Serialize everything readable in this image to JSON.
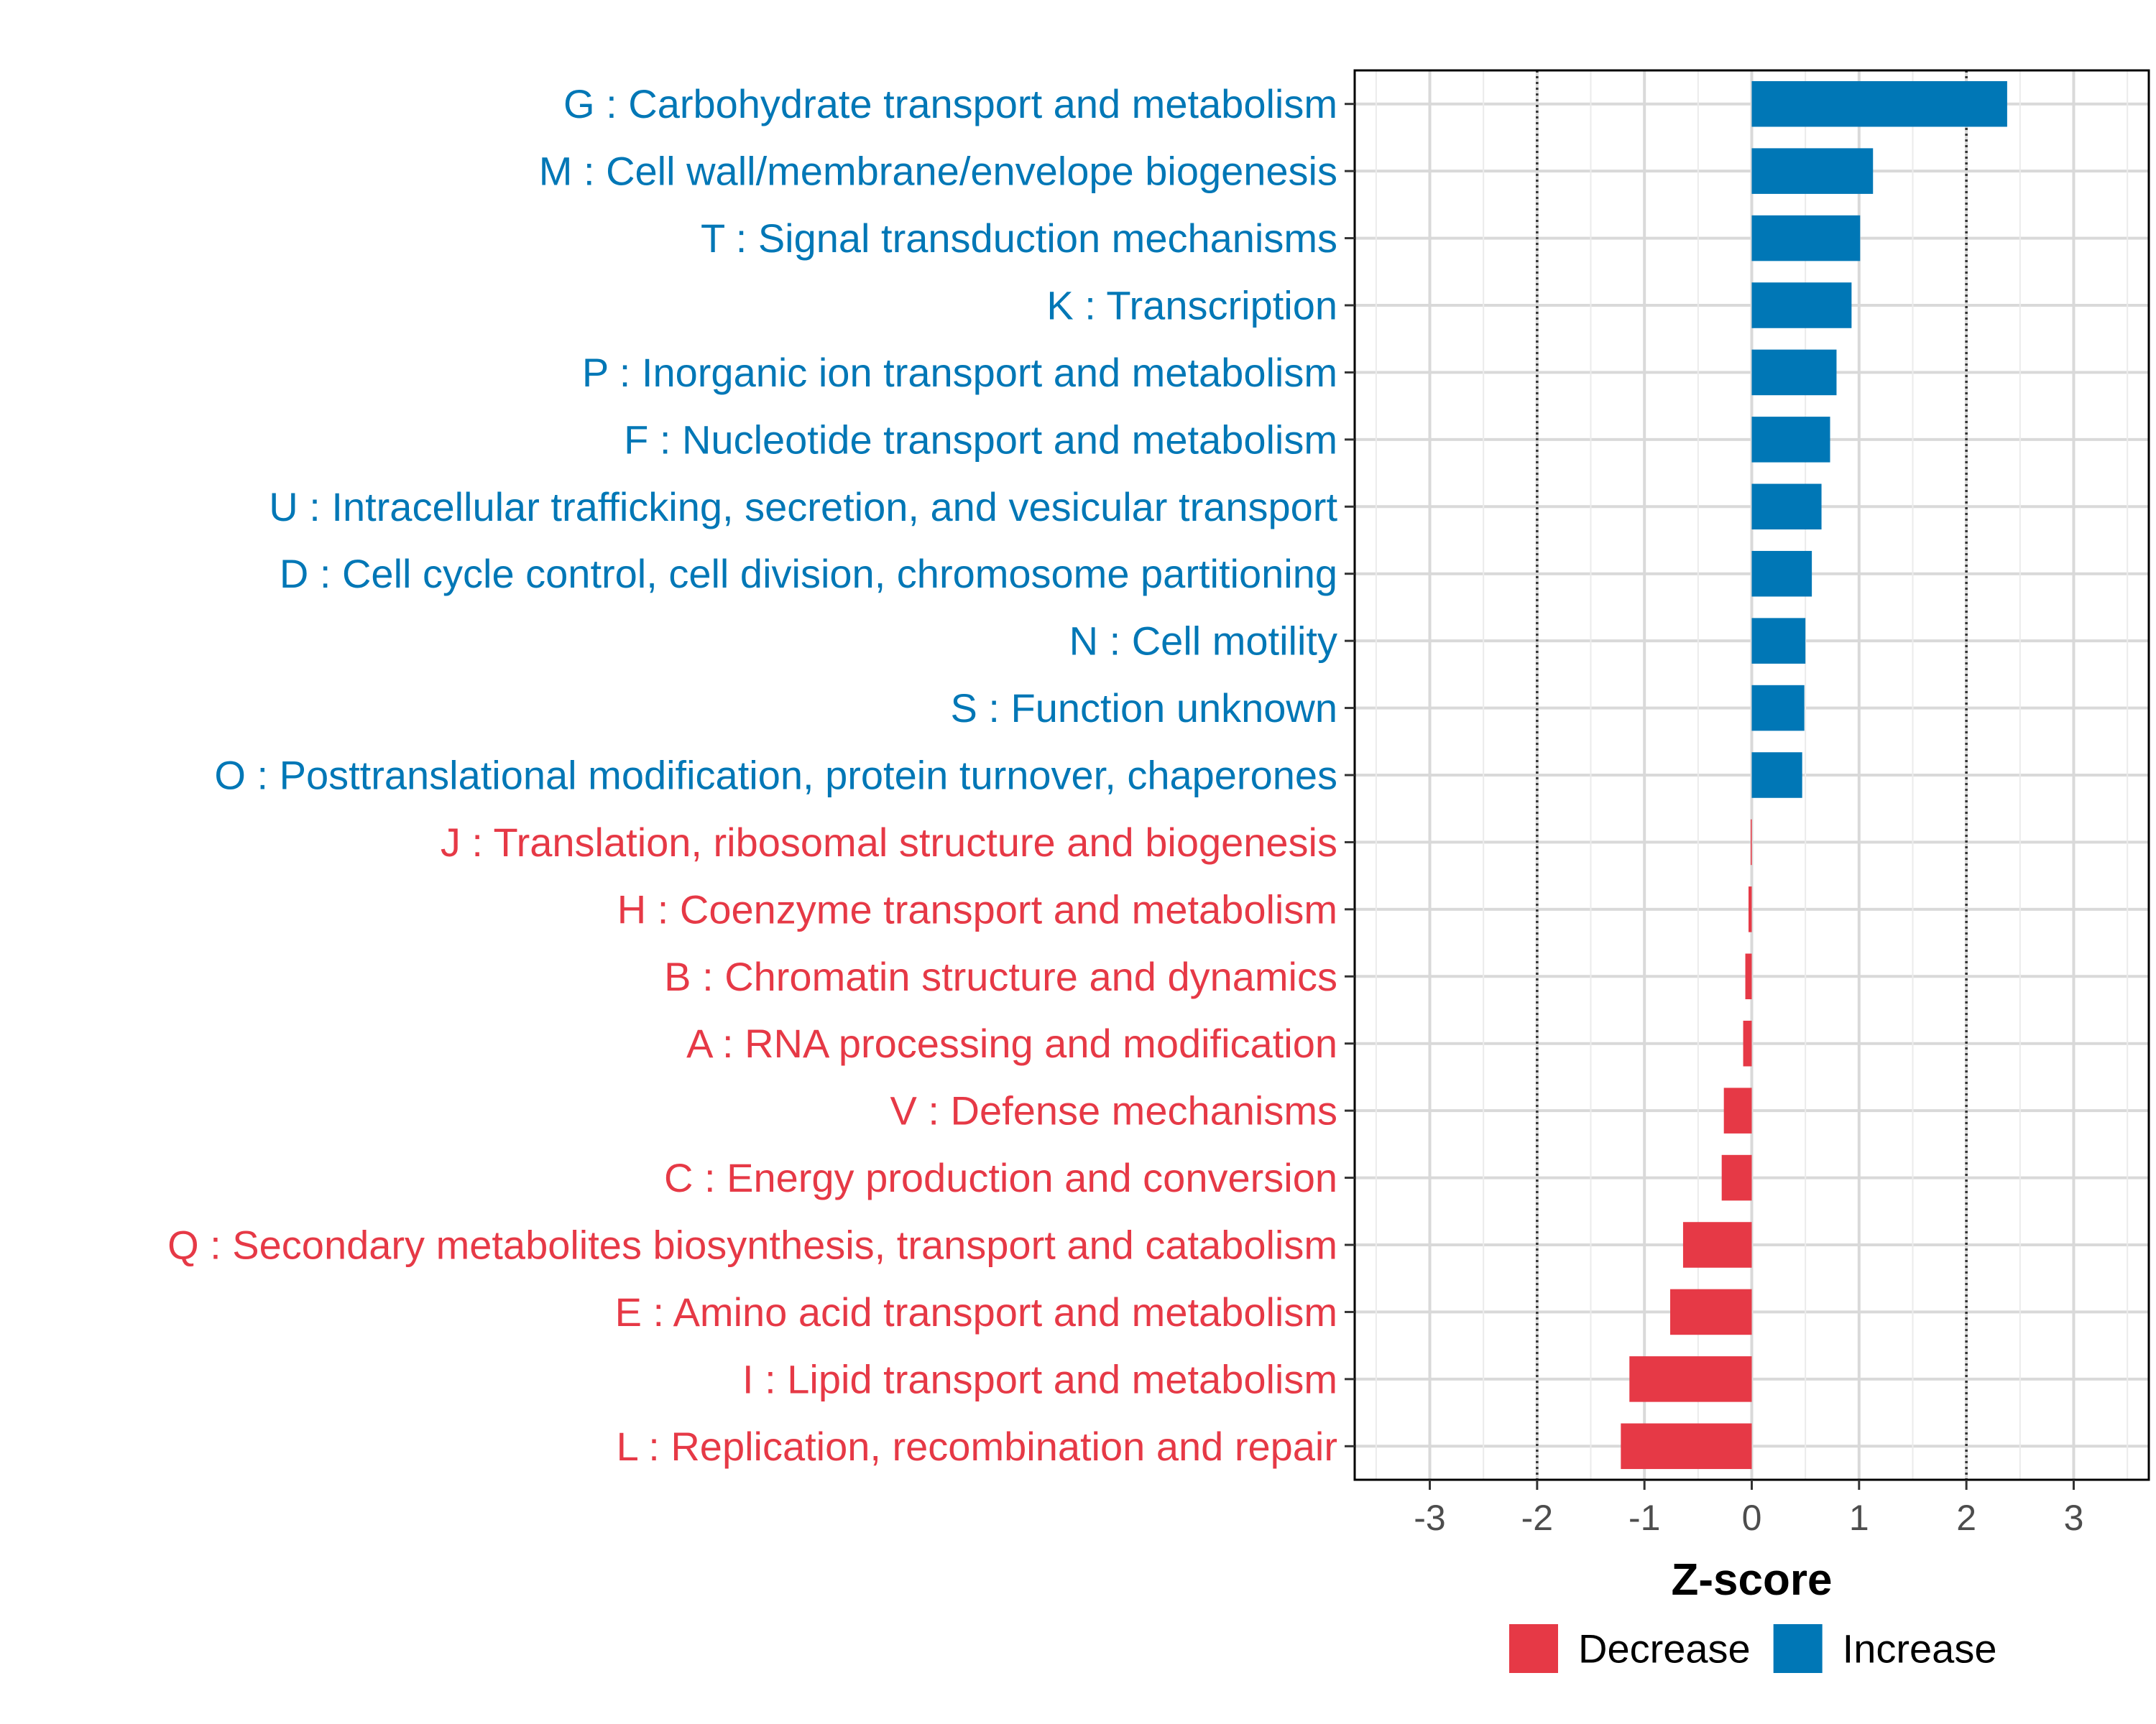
{
  "chart_data": {
    "type": "bar",
    "orientation": "horizontal",
    "xlabel": "Z-score",
    "xlim": [
      -3.7,
      3.7
    ],
    "xticks": [
      -3,
      -2,
      -1,
      0,
      1,
      2,
      3
    ],
    "reference_lines": [
      -2,
      2
    ],
    "grid": true,
    "legend_position": "bottom",
    "categories": [
      "G : Carbohydrate transport and metabolism",
      "M : Cell wall/membrane/envelope biogenesis",
      "T : Signal transduction mechanisms",
      "K : Transcription",
      "P : Inorganic ion transport and metabolism",
      "F : Nucleotide transport and metabolism",
      "U : Intracellular trafficking, secretion, and vesicular transport",
      "D : Cell cycle control, cell division, chromosome partitioning",
      "N : Cell motility",
      "S : Function unknown",
      "O : Posttranslational modification, protein turnover, chaperones",
      "J : Translation, ribosomal structure and biogenesis",
      "H : Coenzyme transport and metabolism",
      "B : Chromatin structure and dynamics",
      "A : RNA processing and modification",
      "V : Defense mechanisms",
      "C : Energy production and conversion",
      "Q : Secondary metabolites biosynthesis, transport and catabolism",
      "E : Amino acid transport and metabolism",
      "I : Lipid transport and metabolism",
      "L : Replication, recombination and repair"
    ],
    "values": [
      2.38,
      1.13,
      1.01,
      0.93,
      0.79,
      0.73,
      0.65,
      0.56,
      0.5,
      0.49,
      0.47,
      -0.01,
      -0.03,
      -0.06,
      -0.08,
      -0.26,
      -0.28,
      -0.64,
      -0.76,
      -1.14,
      -1.22
    ],
    "legend": [
      {
        "name": "Decrease",
        "color": "#E63946"
      },
      {
        "name": "Increase",
        "color": "#0077B6"
      }
    ]
  }
}
